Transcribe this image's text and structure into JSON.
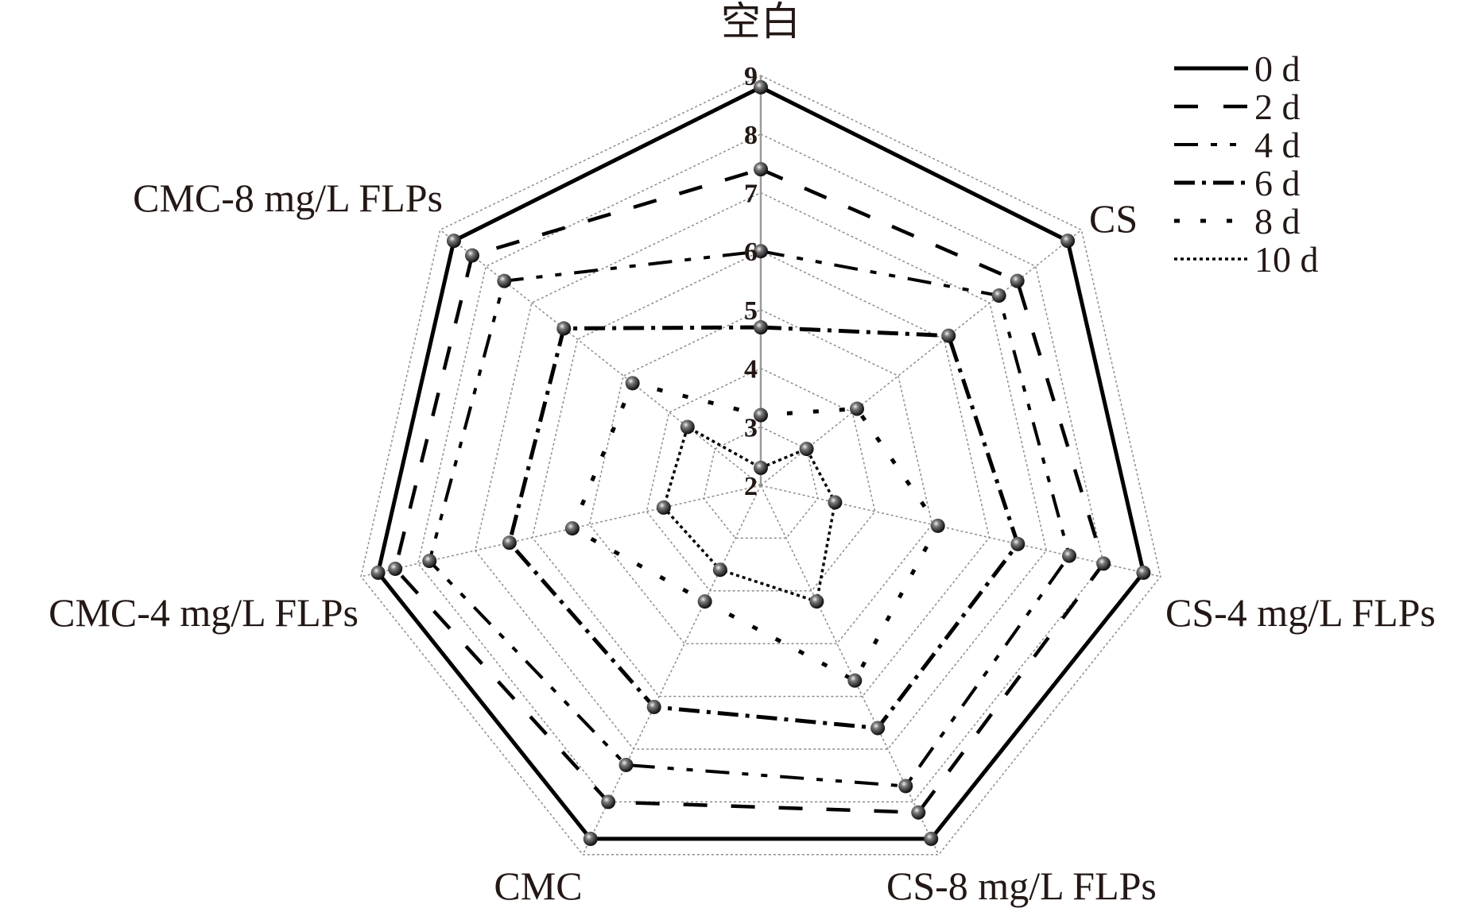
{
  "chart_data": {
    "type": "radar",
    "axes": [
      "空白",
      "CS",
      "CS-4 mg/L FLPs",
      "CS-8 mg/L FLPs",
      "CMC",
      "CMC-4 mg/L FLPs",
      "CMC-8 mg/L FLPs"
    ],
    "radial_range": [
      2,
      9
    ],
    "radial_ticks": [
      "2",
      "3",
      "4",
      "5",
      "6",
      "7",
      "8",
      "9"
    ],
    "grid": true,
    "legend_position": "top-right",
    "series": [
      {
        "name": "0 d",
        "line_style": "solid",
        "values": [
          8.8,
          8.7,
          8.7,
          8.7,
          8.7,
          8.7,
          8.7
        ]
      },
      {
        "name": "2 d",
        "line_style": "dashed",
        "values": [
          7.4,
          7.6,
          8.0,
          8.2,
          8.0,
          8.4,
          8.3
        ]
      },
      {
        "name": "4 d",
        "line_style": "dash-dot-dot",
        "values": [
          6.0,
          7.2,
          7.4,
          7.7,
          7.3,
          7.8,
          7.6
        ]
      },
      {
        "name": "6 d",
        "line_style": "dash-dot",
        "values": [
          4.7,
          6.1,
          6.5,
          6.6,
          6.2,
          6.4,
          6.3
        ]
      },
      {
        "name": "8 d",
        "line_style": "short-dash",
        "values": [
          3.2,
          4.1,
          5.1,
          5.7,
          4.2,
          5.3,
          4.8
        ]
      },
      {
        "name": "10 d",
        "line_style": "dotted",
        "values": [
          2.3,
          3.0,
          3.3,
          4.2,
          3.6,
          3.7,
          3.6
        ]
      }
    ],
    "colors": {
      "series": "#000000",
      "grid": "#8c8c8c",
      "text": "#231815"
    }
  }
}
